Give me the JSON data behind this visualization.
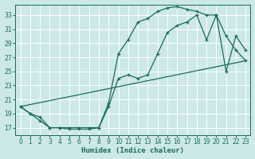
{
  "xlabel": "Humidex (Indice chaleur)",
  "background_color": "#cce8e8",
  "grid_color": "#ffffff",
  "line_color": "#1a6b5a",
  "xlim": [
    -0.5,
    23.5
  ],
  "ylim": [
    16.0,
    34.5
  ],
  "xticks": [
    0,
    1,
    2,
    3,
    4,
    5,
    6,
    7,
    8,
    9,
    10,
    11,
    12,
    13,
    14,
    15,
    16,
    17,
    18,
    19,
    20,
    21,
    22,
    23
  ],
  "yticks": [
    17,
    19,
    21,
    23,
    25,
    27,
    29,
    31,
    33
  ],
  "line1_x": [
    0,
    1,
    2,
    3,
    4,
    5,
    6,
    7,
    8,
    9,
    10,
    11,
    12,
    13,
    14,
    15,
    16,
    17,
    18,
    19,
    20,
    21,
    22,
    23
  ],
  "line1_y": [
    20.0,
    19.0,
    18.0,
    17.0,
    17.0,
    16.8,
    16.8,
    16.8,
    17.0,
    20.5,
    27.5,
    29.5,
    32.0,
    32.5,
    33.5,
    34.0,
    34.2,
    33.8,
    33.5,
    33.0,
    33.0,
    30.0,
    28.0,
    26.5
  ],
  "line2_x": [
    0,
    1,
    2,
    3,
    4,
    5,
    6,
    7,
    8,
    9,
    10,
    11,
    12,
    13,
    14,
    15,
    16,
    17,
    18,
    19,
    20,
    21,
    22,
    23
  ],
  "line2_y": [
    20.0,
    19.0,
    18.5,
    17.0,
    17.0,
    17.0,
    17.0,
    17.0,
    17.0,
    20.0,
    24.0,
    24.5,
    24.0,
    24.5,
    27.5,
    30.5,
    31.5,
    32.0,
    33.0,
    29.5,
    33.0,
    25.0,
    30.0,
    28.0
  ],
  "line3_x": [
    0,
    23
  ],
  "line3_y": [
    20.0,
    26.5
  ]
}
